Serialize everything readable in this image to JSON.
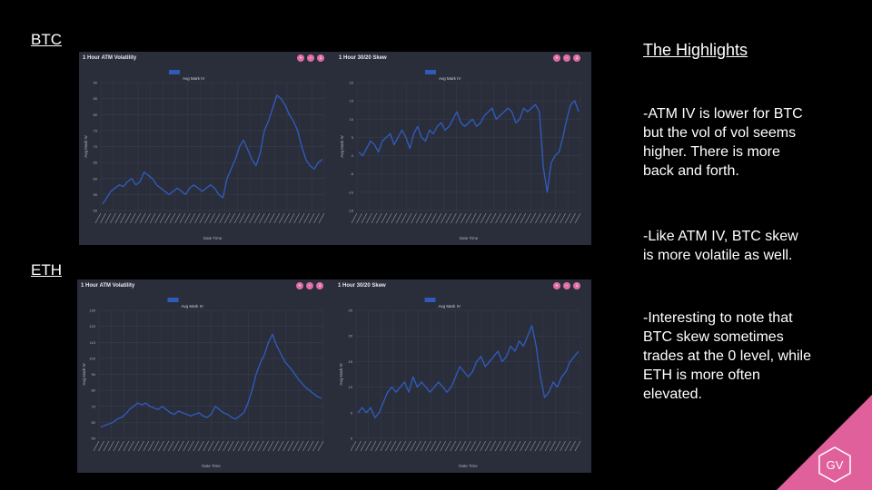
{
  "sections": {
    "btc": "BTC",
    "eth": "ETH"
  },
  "chart_data": [
    {
      "id": "btc-atm",
      "type": "line",
      "title": "1 Hour ATM Volatility",
      "legend": "Avg Mark IV",
      "xlabel": "Date Time",
      "ylabel": "Avg Mark IV",
      "ylim": [
        50,
        90
      ],
      "yticks": [
        "50",
        "55",
        "60",
        "65",
        "70",
        "75",
        "80",
        "85",
        "90"
      ],
      "y": [
        52,
        54,
        56,
        57,
        58,
        57.5,
        59,
        60,
        58,
        59,
        62,
        61,
        60,
        58,
        57,
        56,
        55,
        56,
        57,
        56,
        55,
        57,
        58,
        57,
        56,
        57,
        58,
        57,
        55,
        54,
        60,
        63,
        66,
        70,
        72,
        69,
        66,
        64,
        68,
        75,
        78,
        82,
        86,
        85,
        83,
        80,
        78,
        75,
        70,
        66,
        64,
        63,
        65,
        66
      ]
    },
    {
      "id": "btc-skew",
      "type": "line",
      "title": "1 Hour 30/20 Skew",
      "legend": "Avg Mark IV",
      "xlabel": "Date Time",
      "ylabel": "Avg Mark IV",
      "ylim": [
        -15,
        20
      ],
      "yticks": [
        "-15",
        "-10",
        "-5",
        "0",
        "5",
        "10",
        "15",
        "20"
      ],
      "y": [
        1,
        0,
        2,
        4,
        3,
        1,
        4,
        5,
        6,
        3,
        5,
        7,
        5,
        2,
        6,
        8,
        5,
        4,
        7,
        6,
        8,
        9,
        7,
        8,
        10,
        12,
        9,
        8,
        9,
        10,
        8,
        9,
        11,
        12,
        13,
        10,
        11,
        12,
        13,
        12,
        9,
        10,
        13,
        12,
        13,
        14,
        12,
        -3,
        -10,
        -2,
        0,
        1,
        5,
        10,
        14,
        15,
        12
      ]
    },
    {
      "id": "eth-atm",
      "type": "line",
      "title": "1 Hour ATM Volatility",
      "legend": "Avg Mark IV",
      "xlabel": "Date Time",
      "ylabel": "Avg Mark IV",
      "ylim": [
        50,
        130
      ],
      "yticks": [
        "50",
        "60",
        "70",
        "80",
        "90",
        "100",
        "110",
        "120",
        "130"
      ],
      "y": [
        57,
        58,
        59,
        60,
        62,
        63,
        65,
        68,
        70,
        72,
        71,
        72,
        70,
        69,
        68,
        70,
        68,
        66,
        65,
        67,
        66,
        65,
        64,
        65,
        66,
        64,
        63,
        65,
        70,
        68,
        66,
        65,
        63,
        62,
        64,
        66,
        72,
        80,
        90,
        97,
        102,
        110,
        115,
        108,
        103,
        98,
        95,
        92,
        88,
        85,
        82,
        80,
        78,
        76,
        75
      ]
    },
    {
      "id": "eth-skew",
      "type": "line",
      "title": "1 Hour 30/20 Skew",
      "legend": "Avg Mark IV",
      "xlabel": "Date Time",
      "ylabel": "Avg Mark IV",
      "ylim": [
        0,
        25
      ],
      "yticks": [
        "0",
        "5",
        "10",
        "15",
        "20",
        "25"
      ],
      "y": [
        5,
        6,
        5,
        6,
        4,
        5,
        7,
        9,
        10,
        9,
        10,
        11,
        9,
        12,
        10,
        11,
        10,
        9,
        10,
        11,
        10,
        9,
        10,
        12,
        14,
        13,
        12,
        13,
        15,
        16,
        14,
        15,
        16,
        17,
        15,
        16,
        18,
        17,
        19,
        18,
        20,
        22,
        18,
        12,
        8,
        9,
        11,
        10,
        12,
        13,
        15,
        16,
        17
      ]
    }
  ],
  "highlights": {
    "title": "The Highlights",
    "points": [
      "-ATM IV is lower for BTC but the vol of vol seems higher. There is more back and forth.",
      "-Like ATM IV, BTC skew is more volatile as well.",
      "-Interesting to note that BTC skew sometimes trades at the 0 level, while ETH is more often elevated."
    ]
  },
  "logo_text": "GV",
  "colors": {
    "line": "#2f5bb8",
    "panel": "#2a2d3a",
    "grid": "#3c4050",
    "button": "#e06ea6",
    "triangle": "#e0609b"
  }
}
